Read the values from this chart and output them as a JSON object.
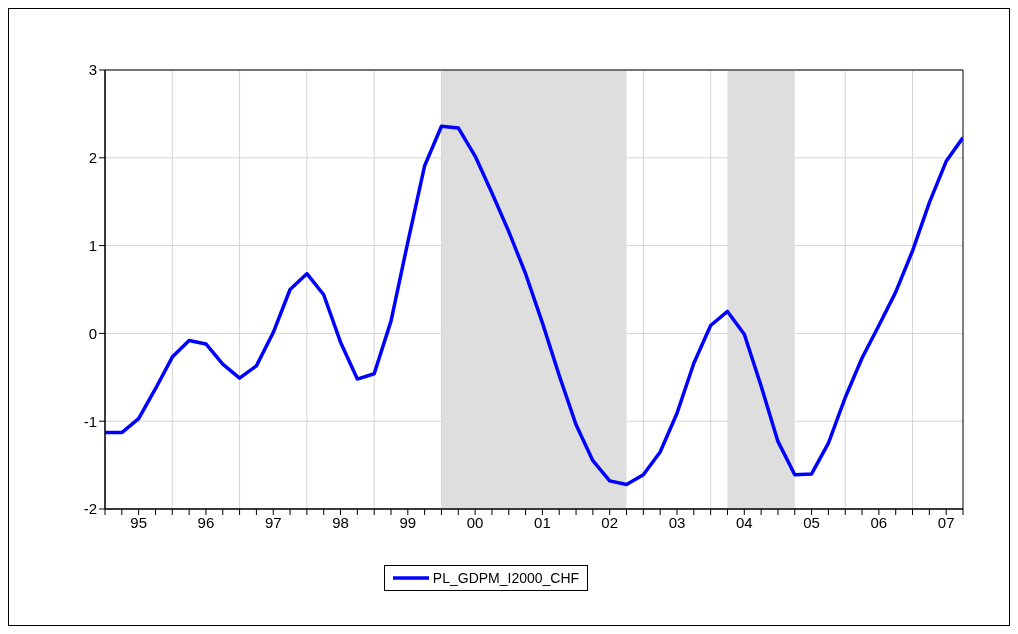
{
  "chart_data": {
    "type": "line",
    "x": [
      "1995-01",
      "1995-04",
      "1995-07",
      "1995-10",
      "1996-01",
      "1996-04",
      "1996-07",
      "1996-10",
      "1997-01",
      "1997-04",
      "1997-07",
      "1997-10",
      "1998-01",
      "1998-04",
      "1998-07",
      "1998-10",
      "1999-01",
      "1999-04",
      "1999-07",
      "1999-10",
      "2000-01",
      "2000-04",
      "2000-07",
      "2000-10",
      "2001-01",
      "2001-04",
      "2001-07",
      "2001-10",
      "2002-01",
      "2002-04",
      "2002-07",
      "2002-10",
      "2003-01",
      "2003-04",
      "2003-07",
      "2003-10",
      "2004-01",
      "2004-04",
      "2004-07",
      "2004-10",
      "2005-01",
      "2005-04",
      "2005-07",
      "2005-10",
      "2006-01",
      "2006-04",
      "2006-07",
      "2006-10",
      "2007-01",
      "2007-04",
      "2007-07",
      "2007-10"
    ],
    "series": [
      {
        "name": "PL_GDPM_I2000_CHF",
        "color": "#0000ff",
        "values": [
          -1.13,
          -1.13,
          -0.97,
          -0.63,
          -0.27,
          -0.08,
          -0.12,
          -0.35,
          -0.51,
          -0.37,
          0.01,
          0.5,
          0.68,
          0.44,
          -0.1,
          -0.52,
          -0.46,
          0.14,
          1.04,
          1.91,
          2.36,
          2.34,
          2.02,
          1.6,
          1.16,
          0.68,
          0.12,
          -0.48,
          -1.04,
          -1.45,
          -1.68,
          -1.72,
          -1.61,
          -1.35,
          -0.91,
          -0.34,
          0.09,
          0.25,
          -0.01,
          -0.6,
          -1.23,
          -1.61,
          -1.6,
          -1.25,
          -0.73,
          -0.28,
          0.09,
          0.47,
          0.94,
          1.49,
          1.96,
          2.23
        ]
      }
    ],
    "xlim": [
      "1995-01",
      "2007-10"
    ],
    "xticks": [
      {
        "value": "1995-01",
        "label": null
      },
      {
        "value": "1995-04",
        "label": null
      },
      {
        "value": "1995-07",
        "label": "95"
      },
      {
        "value": "1995-10",
        "label": null
      },
      {
        "value": "1996-01",
        "label": null
      },
      {
        "value": "1996-04",
        "label": null
      },
      {
        "value": "1996-07",
        "label": "96"
      },
      {
        "value": "1996-10",
        "label": null
      },
      {
        "value": "1997-01",
        "label": null
      },
      {
        "value": "1997-04",
        "label": null
      },
      {
        "value": "1997-07",
        "label": "97"
      },
      {
        "value": "1997-10",
        "label": null
      },
      {
        "value": "1998-01",
        "label": null
      },
      {
        "value": "1998-04",
        "label": null
      },
      {
        "value": "1998-07",
        "label": "98"
      },
      {
        "value": "1998-10",
        "label": null
      },
      {
        "value": "1999-01",
        "label": null
      },
      {
        "value": "1999-04",
        "label": null
      },
      {
        "value": "1999-07",
        "label": "99"
      },
      {
        "value": "1999-10",
        "label": null
      },
      {
        "value": "2000-01",
        "label": null
      },
      {
        "value": "2000-04",
        "label": null
      },
      {
        "value": "2000-07",
        "label": "00"
      },
      {
        "value": "2000-10",
        "label": null
      },
      {
        "value": "2001-01",
        "label": null
      },
      {
        "value": "2001-04",
        "label": null
      },
      {
        "value": "2001-07",
        "label": "01"
      },
      {
        "value": "2001-10",
        "label": null
      },
      {
        "value": "2002-01",
        "label": null
      },
      {
        "value": "2002-04",
        "label": null
      },
      {
        "value": "2002-07",
        "label": "02"
      },
      {
        "value": "2002-10",
        "label": null
      },
      {
        "value": "2003-01",
        "label": null
      },
      {
        "value": "2003-04",
        "label": null
      },
      {
        "value": "2003-07",
        "label": "03"
      },
      {
        "value": "2003-10",
        "label": null
      },
      {
        "value": "2004-01",
        "label": null
      },
      {
        "value": "2004-04",
        "label": null
      },
      {
        "value": "2004-07",
        "label": "04"
      },
      {
        "value": "2004-10",
        "label": null
      },
      {
        "value": "2005-01",
        "label": null
      },
      {
        "value": "2005-04",
        "label": null
      },
      {
        "value": "2005-07",
        "label": "05"
      },
      {
        "value": "2005-10",
        "label": null
      },
      {
        "value": "2006-01",
        "label": null
      },
      {
        "value": "2006-04",
        "label": null
      },
      {
        "value": "2006-07",
        "label": "06"
      },
      {
        "value": "2006-10",
        "label": null
      },
      {
        "value": "2007-01",
        "label": null
      },
      {
        "value": "2007-04",
        "label": null
      },
      {
        "value": "2007-07",
        "label": "07"
      },
      {
        "value": "2007-10",
        "label": null
      }
    ],
    "ylim": [
      -2,
      3
    ],
    "yticks": [
      -2,
      -1,
      0,
      1,
      2,
      3
    ],
    "bands": [
      {
        "axis": "x",
        "from": "2000-01",
        "to": "2002-10",
        "color": "#dedede"
      },
      {
        "axis": "x",
        "from": "2004-04",
        "to": "2005-04",
        "color": "#dedede"
      }
    ],
    "grid": true,
    "legend": "bottom",
    "line_style": "solid",
    "marker": "none"
  }
}
